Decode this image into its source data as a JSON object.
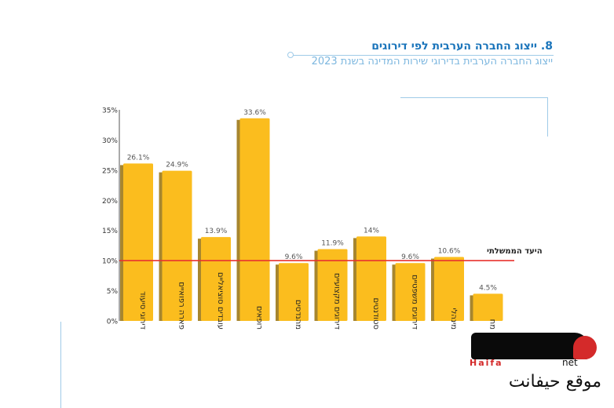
{
  "header": {
    "title": "8. ייצוג החברה הערבית לפי דירוגים",
    "subtitle": "ייצוג החברה הערבית בדירוגי שירות המדינה בשנת 2023"
  },
  "chart_data": {
    "type": "bar",
    "title": "8. ייצוג החברה הערבית לפי דירוגים",
    "subtitle": "ייצוג החברה הערבית בדירוגי שירות המדינה בשנת 2023",
    "categories": [
      "דירוגי סיעוד",
      "פארה רפואיים",
      "עובדים סוציאליים",
      "רופאים",
      "מהנדסים",
      "דירוגים מקצועיים",
      "סטודנטים",
      "דירוגים משפטיים",
      "מינהלי",
      "מח"
    ],
    "values": [
      26.1,
      24.9,
      13.9,
      33.6,
      9.6,
      11.9,
      14,
      9.6,
      10.6,
      4.5
    ],
    "value_labels": [
      "26.1%",
      "24.9%",
      "13.9%",
      "33.6%",
      "9.6%",
      "11.9%",
      "14%",
      "9.6%",
      "10.6%",
      "4.5%"
    ],
    "yticks": [
      "0%",
      "5%",
      "10%",
      "15%",
      "20%",
      "25%",
      "30%",
      "35%"
    ],
    "ylim": [
      0,
      35
    ],
    "target": {
      "value": 10,
      "label": "היעד הממשלתי",
      "color": "#e8332f"
    },
    "colors": {
      "bar": "#fbbd1e",
      "bar_shadow": "#a7862f"
    },
    "grid": false
  },
  "logo": {
    "sub": "Haifa",
    "net": "net",
    "tagline": "موقع حيفانت"
  }
}
